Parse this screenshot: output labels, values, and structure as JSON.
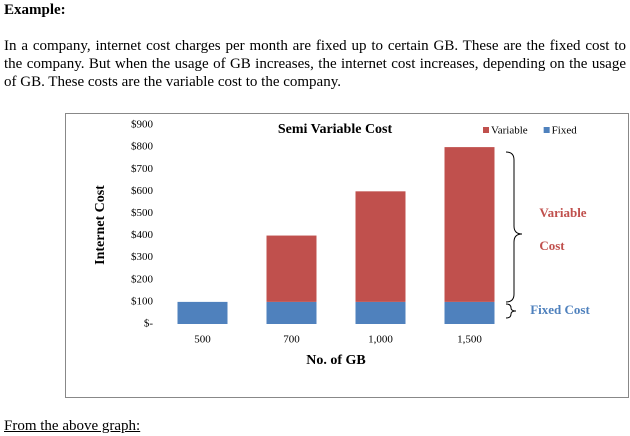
{
  "header": {
    "title": "Example:"
  },
  "body": {
    "paragraph": "In a company, internet cost charges per month are fixed up to certain GB. These are the fixed cost to the company. But when the usage of GB increases, the internet cost increases, depending on the usage of GB. These costs are the variable cost to the company."
  },
  "chart_data": {
    "type": "stacked_bar",
    "title": "Semi Variable Cost",
    "x_label": "No. of GB",
    "y_label": "Internet Cost",
    "categories": [
      "500",
      "700",
      "1,000",
      "1,500"
    ],
    "series": [
      {
        "name": "Variable",
        "color": "#c0504d",
        "values": [
          0,
          300,
          500,
          700
        ]
      },
      {
        "name": "Fixed",
        "color": "#4f81bd",
        "values": [
          100,
          100,
          100,
          100
        ]
      }
    ],
    "ylim": [
      0,
      900
    ],
    "yticks": [
      {
        "value": 0,
        "label": "$-"
      },
      {
        "value": 100,
        "label": "$100"
      },
      {
        "value": 200,
        "label": "$200"
      },
      {
        "value": 300,
        "label": "$300"
      },
      {
        "value": 400,
        "label": "$400"
      },
      {
        "value": 500,
        "label": "$500"
      },
      {
        "value": 600,
        "label": "$600"
      },
      {
        "value": 700,
        "label": "$700"
      },
      {
        "value": 800,
        "label": "$800"
      },
      {
        "value": 900,
        "label": "$900"
      }
    ],
    "grid": false,
    "legend": "top-right",
    "annotations": [
      "Variable",
      "Cost",
      "Fixed Cost"
    ]
  },
  "footer": {
    "text": "From the above graph:"
  }
}
